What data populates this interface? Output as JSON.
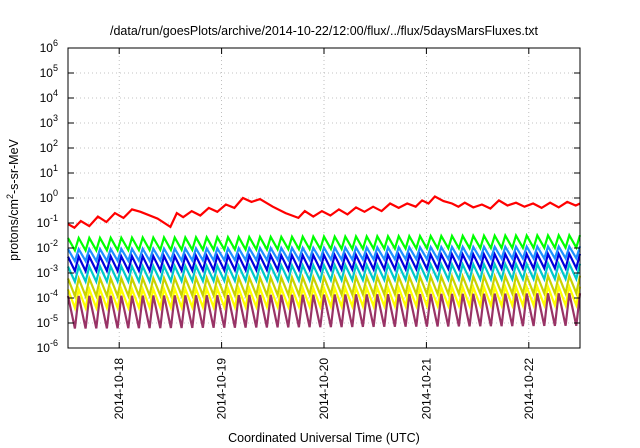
{
  "chart_data": {
    "type": "line",
    "title": "/data/run/goesPlots/archive/2014-10-22/12:00/flux/../flux/5daysMarsFluxes.txt",
    "xlabel": "Coordinated Universal Time (UTC)",
    "ylabel": {
      "prefix": "protons/cm",
      "sup": "2",
      "suffix": "-s-sr-MeV"
    },
    "yscale": "log",
    "ylim": [
      1e-06,
      1000000.0
    ],
    "y_ticks": [
      {
        "value": 1e-06,
        "base": "10",
        "exp": "-6"
      },
      {
        "value": 1e-05,
        "base": "10",
        "exp": "-5"
      },
      {
        "value": 0.0001,
        "base": "10",
        "exp": "-4"
      },
      {
        "value": 0.001,
        "base": "10",
        "exp": "-3"
      },
      {
        "value": 0.01,
        "base": "10",
        "exp": "-2"
      },
      {
        "value": 0.1,
        "base": "10",
        "exp": "-1"
      },
      {
        "value": 1,
        "base": "10",
        "exp": "0"
      },
      {
        "value": 10,
        "base": "10",
        "exp": "1"
      },
      {
        "value": 100,
        "base": "10",
        "exp": "2"
      },
      {
        "value": 1000,
        "base": "10",
        "exp": "3"
      },
      {
        "value": 10000,
        "base": "10",
        "exp": "4"
      },
      {
        "value": 100000,
        "base": "10",
        "exp": "5"
      },
      {
        "value": 1000000,
        "base": "10",
        "exp": "6"
      }
    ],
    "xlim": [
      "2014-10-17 12:00",
      "2014-10-22 12:00"
    ],
    "x_ticks": [
      "2014-10-18",
      "2014-10-19",
      "2014-10-20",
      "2014-10-21",
      "2014-10-22"
    ],
    "grid": true,
    "legend": "none",
    "series": [
      {
        "color": "#ff0000",
        "values": [
          [
            "2014-10-17 12:00",
            0.09
          ],
          [
            "2014-10-17 13:30",
            0.065
          ],
          [
            "2014-10-17 15:00",
            0.12
          ],
          [
            "2014-10-17 17:00",
            0.075
          ],
          [
            "2014-10-17 19:00",
            0.18
          ],
          [
            "2014-10-17 21:00",
            0.11
          ],
          [
            "2014-10-17 23:00",
            0.25
          ],
          [
            "2014-10-18 01:00",
            0.16
          ],
          [
            "2014-10-18 03:00",
            0.35
          ],
          [
            "2014-10-18 05:00",
            0.28
          ],
          [
            "2014-10-18 09:00",
            0.15
          ],
          [
            "2014-10-18 12:00",
            0.07
          ],
          [
            "2014-10-18 13:30",
            0.25
          ],
          [
            "2014-10-18 15:00",
            0.17
          ],
          [
            "2014-10-18 17:00",
            0.3
          ],
          [
            "2014-10-18 19:00",
            0.2
          ],
          [
            "2014-10-18 21:00",
            0.4
          ],
          [
            "2014-10-18 23:00",
            0.28
          ],
          [
            "2014-10-19 01:00",
            0.55
          ],
          [
            "2014-10-19 03:00",
            0.4
          ],
          [
            "2014-10-19 05:00",
            1.0
          ],
          [
            "2014-10-19 07:00",
            0.7
          ],
          [
            "2014-10-19 09:00",
            0.9
          ],
          [
            "2014-10-19 12:00",
            0.45
          ],
          [
            "2014-10-19 15:00",
            0.25
          ],
          [
            "2014-10-19 18:00",
            0.16
          ],
          [
            "2014-10-19 19:30",
            0.3
          ],
          [
            "2014-10-19 21:30",
            0.18
          ],
          [
            "2014-10-19 23:30",
            0.3
          ],
          [
            "2014-10-20 01:30",
            0.2
          ],
          [
            "2014-10-20 03:30",
            0.35
          ],
          [
            "2014-10-20 05:30",
            0.22
          ],
          [
            "2014-10-20 07:30",
            0.42
          ],
          [
            "2014-10-20 09:30",
            0.28
          ],
          [
            "2014-10-20 11:30",
            0.45
          ],
          [
            "2014-10-20 13:30",
            0.3
          ],
          [
            "2014-10-20 15:30",
            0.6
          ],
          [
            "2014-10-20 17:30",
            0.4
          ],
          [
            "2014-10-20 19:30",
            0.6
          ],
          [
            "2014-10-20 21:30",
            0.45
          ],
          [
            "2014-10-20 23:00",
            0.8
          ],
          [
            "2014-10-21 00:30",
            0.6
          ],
          [
            "2014-10-21 02:00",
            1.15
          ],
          [
            "2014-10-21 04:00",
            0.75
          ],
          [
            "2014-10-21 06:00",
            0.6
          ],
          [
            "2014-10-21 07:30",
            0.45
          ],
          [
            "2014-10-21 09:00",
            0.65
          ],
          [
            "2014-10-21 11:00",
            0.42
          ],
          [
            "2014-10-21 13:00",
            0.55
          ],
          [
            "2014-10-21 15:00",
            0.38
          ],
          [
            "2014-10-21 17:00",
            0.8
          ],
          [
            "2014-10-21 19:00",
            0.5
          ],
          [
            "2014-10-21 21:00",
            0.65
          ],
          [
            "2014-10-21 23:00",
            0.45
          ],
          [
            "2014-10-22 01:00",
            0.6
          ],
          [
            "2014-10-22 03:00",
            0.4
          ],
          [
            "2014-10-22 05:00",
            0.65
          ],
          [
            "2014-10-22 07:00",
            0.42
          ],
          [
            "2014-10-22 09:00",
            0.7
          ],
          [
            "2014-10-22 11:00",
            0.5
          ],
          [
            "2014-10-22 12:00",
            0.6
          ]
        ]
      },
      {
        "color": "#00ff00",
        "pattern": {
          "high": 0.025,
          "low": 0.008,
          "trend_end": 1.3,
          "period_hours": 2.5
        }
      },
      {
        "color": "#1e90ff",
        "pattern": {
          "high": 0.009,
          "low": 0.003,
          "trend_end": 1.3,
          "period_hours": 2.5
        }
      },
      {
        "color": "#0000dd",
        "pattern": {
          "high": 0.0045,
          "low": 0.0012,
          "trend_end": 1.3,
          "period_hours": 2.5
        }
      },
      {
        "color": "#00c8c8",
        "pattern": {
          "high": 0.0018,
          "low": 0.00045,
          "trend_end": 1.3,
          "period_hours": 2.5
        }
      },
      {
        "color": "#c8d200",
        "pattern": {
          "high": 0.0006,
          "low": 0.00012,
          "trend_end": 1.3,
          "period_hours": 2.5
        }
      },
      {
        "color": "#ffff00",
        "pattern": {
          "high": 0.00022,
          "low": 4e-05,
          "trend_end": 1.3,
          "period_hours": 2.5
        }
      },
      {
        "color": "#993366",
        "pattern": {
          "high": 0.00012,
          "low": 6e-06,
          "trend_end": 1.3,
          "period_hours": 2.5
        }
      }
    ]
  }
}
